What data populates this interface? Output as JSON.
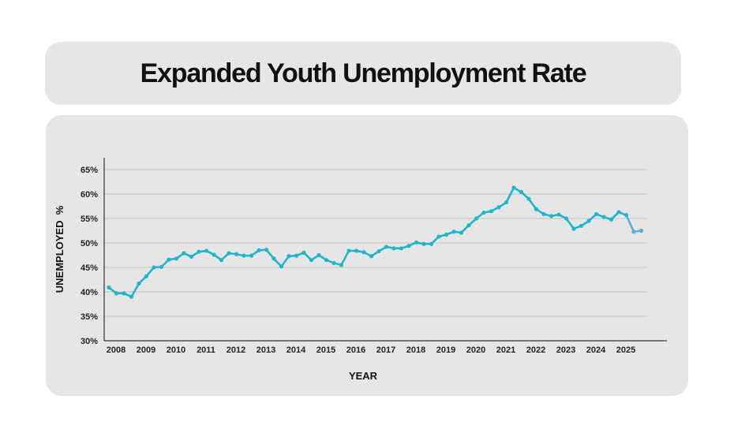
{
  "chart_data": {
    "type": "line",
    "title": "Expanded Youth Unemployment Rate",
    "xlabel": "YEAR",
    "ylabel": "UNEMPLOYED  %",
    "ylim": [
      30,
      65
    ],
    "yticks": [
      "30%",
      "35%",
      "40%",
      "45%",
      "50%",
      "55%",
      "60%",
      "65%"
    ],
    "ytick_values": [
      30,
      35,
      40,
      45,
      50,
      55,
      60,
      65
    ],
    "xticks": [
      "2008",
      "2009",
      "2010",
      "2011",
      "2012",
      "2013",
      "2014",
      "2015",
      "2016",
      "2017",
      "2018",
      "2019",
      "2020",
      "2021",
      "2022",
      "2023",
      "2024",
      "2025"
    ],
    "grid": true,
    "frequency": "quarterly",
    "series": [
      {
        "name": "Expanded youth unemployment rate",
        "color": "#1fb6cc",
        "recent_color": "#5aaee0",
        "values": [
          40.9,
          39.7,
          39.7,
          39.0,
          41.7,
          43.2,
          45.0,
          45.1,
          46.6,
          46.8,
          47.9,
          47.2,
          48.2,
          48.4,
          47.6,
          46.5,
          47.9,
          47.7,
          47.4,
          47.4,
          48.5,
          48.6,
          46.8,
          45.2,
          47.3,
          47.4,
          48.0,
          46.5,
          47.5,
          46.5,
          45.9,
          45.5,
          48.4,
          48.4,
          48.1,
          47.3,
          48.3,
          49.2,
          48.9,
          48.9,
          49.4,
          50.1,
          49.8,
          49.8,
          51.3,
          51.7,
          52.3,
          52.1,
          53.6,
          55.0,
          56.2,
          56.5,
          57.3,
          58.3,
          61.3,
          60.4,
          59.0,
          56.9,
          55.9,
          55.5,
          55.8,
          55.0,
          52.9,
          53.5,
          54.5,
          55.9,
          55.3,
          54.8,
          56.3,
          55.7,
          52.3,
          52.5
        ]
      }
    ]
  }
}
